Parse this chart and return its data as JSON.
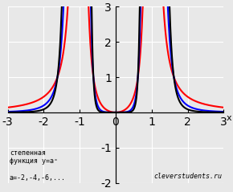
{
  "title": "",
  "xlabel": "x",
  "functions": [
    {
      "exponent": -2,
      "color": "#ff0000",
      "linewidth": 1.5
    },
    {
      "exponent": -4,
      "color": "#0000ff",
      "linewidth": 1.5
    },
    {
      "exponent": -6,
      "color": "#000000",
      "linewidth": 1.5
    }
  ],
  "xlim": [
    -3,
    3
  ],
  "ylim": [
    -2,
    3
  ],
  "xticks": [
    -3,
    -2,
    -1,
    0,
    1,
    2,
    3
  ],
  "yticks": [
    -2,
    -1,
    0,
    1,
    2,
    3
  ],
  "grid": true,
  "background_color": "#e8e8e8",
  "annotation_text": "степенная\nфункция y=aˣ\n\na=-2,-4,-6,...",
  "watermark": "cleverstudents.ru",
  "clip_ymax": 3.05,
  "clip_ymin": -2.0
}
